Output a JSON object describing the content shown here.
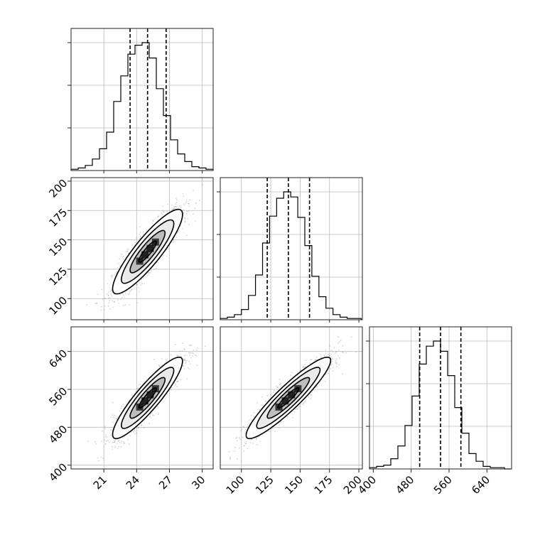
{
  "chart_data": {
    "type": "corner",
    "parameters": [
      {
        "axis_range": [
          18,
          31
        ],
        "ticks": [
          21,
          24,
          27,
          30
        ],
        "tick_labels": [
          "21",
          "24",
          "27",
          "30"
        ],
        "quantiles": [
          23.4,
          25.0,
          26.7
        ]
      },
      {
        "axis_range": [
          82,
          203
        ],
        "ticks": [
          100,
          125,
          150,
          175,
          200
        ],
        "tick_labels": [
          "100",
          "125",
          "150",
          "175",
          "200"
        ],
        "quantiles": [
          122,
          140,
          158
        ]
      },
      {
        "axis_range": [
          392,
          692
        ],
        "ticks": [
          400,
          480,
          560,
          640
        ],
        "tick_labels": [
          "400",
          "480",
          "560",
          "640"
        ],
        "quantiles": [
          498,
          542,
          585
        ]
      }
    ],
    "histograms": [
      {
        "bin_width": 0.65,
        "bin_edges_start": 18.0,
        "counts": [
          1,
          2,
          4,
          9,
          17,
          30,
          54,
          74,
          91,
          98,
          100,
          88,
          64,
          43,
          24,
          13,
          7,
          3,
          2,
          1
        ]
      },
      {
        "bin_width": 6.0,
        "bin_edges_start": 82,
        "counts": [
          1,
          2,
          4,
          8,
          19,
          35,
          60,
          81,
          95,
          100,
          96,
          80,
          58,
          34,
          18,
          9,
          4,
          2,
          1,
          1
        ]
      },
      {
        "bin_width": 15,
        "bin_edges_start": 392,
        "counts": [
          1,
          2,
          3,
          8,
          18,
          34,
          57,
          82,
          96,
          100,
          92,
          73,
          48,
          28,
          12,
          6,
          2,
          1,
          1,
          0
        ]
      }
    ],
    "pairs": [
      {
        "x": 0,
        "y": 1,
        "mean": [
          25.0,
          140
        ],
        "sigma": [
          1.6,
          18
        ],
        "rho": 0.88
      },
      {
        "x": 0,
        "y": 2,
        "mean": [
          25.0,
          542
        ],
        "sigma": [
          1.6,
          43
        ],
        "rho": 0.9
      },
      {
        "x": 1,
        "y": 2,
        "mean": [
          140,
          542
        ],
        "sigma": [
          18,
          43
        ],
        "rho": 0.92
      }
    ],
    "contour_levels_sigma": [
      0.5,
      1.0,
      1.5,
      2.0
    ],
    "grid": true,
    "point_color": "#888888",
    "density_color": "#000000"
  }
}
